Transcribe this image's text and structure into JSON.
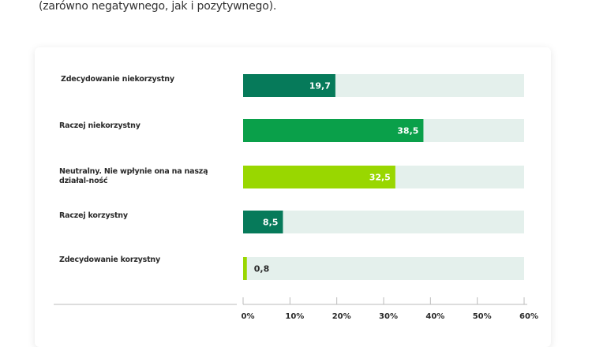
{
  "intro_text": "(zarówno negatywnego, jak i pozytywnego).",
  "chart_data": {
    "type": "bar",
    "orientation": "horizontal",
    "categories": [
      "Zdecydowanie niekorzystny",
      "Raczej niekorzystny",
      "Neutralny. Nie wpłynie ona na naszą działal-ność",
      "Raczej korzystny",
      "Zdecydowanie korzystny"
    ],
    "values": [
      19.7,
      38.5,
      32.5,
      8.5,
      0.8
    ],
    "value_labels": [
      "19,7",
      "38,5",
      "32,5",
      "8,5",
      "0,8"
    ],
    "bar_colors": [
      "#067a5a",
      "#0aa04a",
      "#99d700",
      "#067a5a",
      "#99d700"
    ],
    "track_color": "#e4f0ec",
    "xlim": [
      0,
      60
    ],
    "ticks": [
      0,
      10,
      20,
      30,
      40,
      50,
      60
    ],
    "tick_labels": [
      "0%",
      "10%",
      "20%",
      "30%",
      "40%",
      "50%",
      "60%"
    ],
    "title": "",
    "xlabel": "",
    "ylabel": ""
  }
}
